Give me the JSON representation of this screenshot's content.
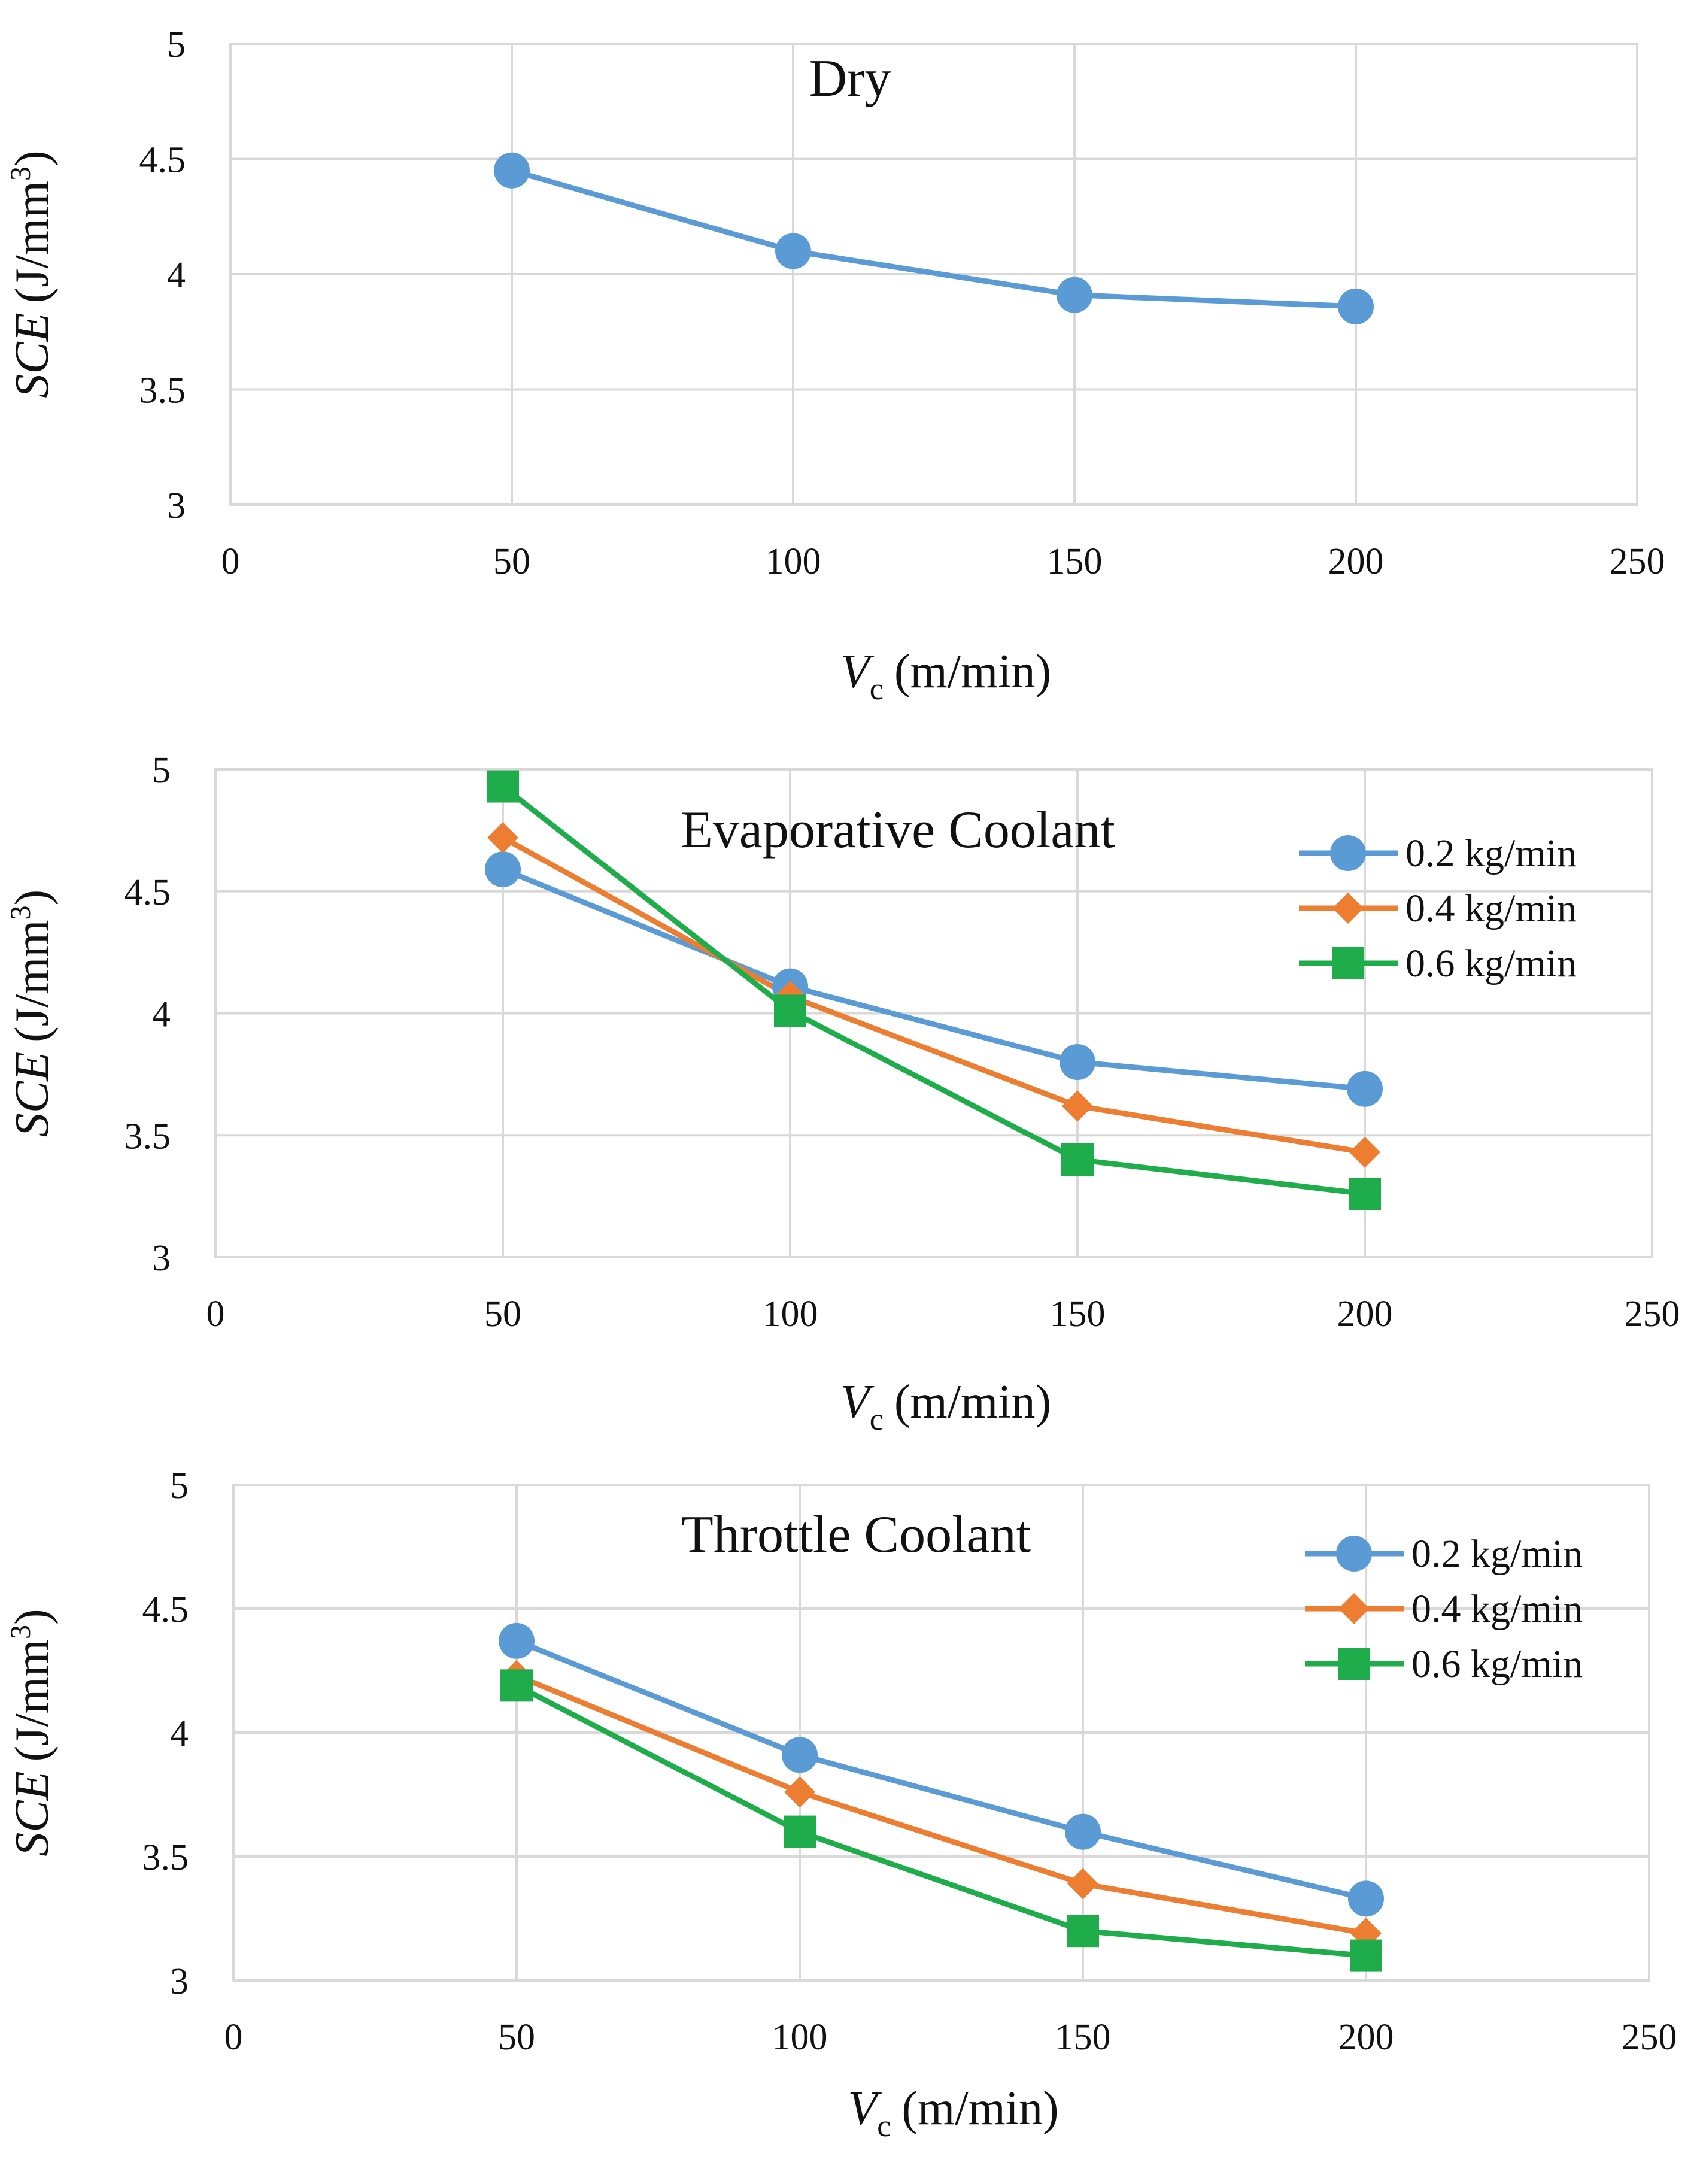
{
  "chart_data": [
    {
      "type": "line",
      "title": "Dry",
      "xlabel": {
        "main": "V",
        "sub": "c",
        "unit": "(m/min)"
      },
      "ylabel": {
        "main": "SCE",
        "unit": "(J/mm",
        "sup": "3",
        "close": ")"
      },
      "xlim": [
        0,
        250
      ],
      "ylim": [
        3,
        5
      ],
      "xticks": [
        "0",
        "50",
        "100",
        "150",
        "200",
        "250"
      ],
      "yticks": [
        "3",
        "3.5",
        "4",
        "4.5",
        "5"
      ],
      "grid": true,
      "legend": null,
      "series": [
        {
          "name": "Dry",
          "marker": "circle",
          "color": "#5b9bd5",
          "x": [
            50,
            100,
            150,
            200
          ],
          "y": [
            4.45,
            4.1,
            3.91,
            3.86
          ]
        }
      ]
    },
    {
      "type": "line",
      "title": "Evaporative Coolant",
      "xlabel": {
        "main": "V",
        "sub": "c",
        "unit": "(m/min)"
      },
      "ylabel": {
        "main": "SCE",
        "unit": "(J/mm",
        "sup": "3",
        "close": ")"
      },
      "xlim": [
        0,
        250
      ],
      "ylim": [
        3,
        5
      ],
      "xticks": [
        "0",
        "50",
        "100",
        "150",
        "200",
        "250"
      ],
      "yticks": [
        "3",
        "3.5",
        "4",
        "4.5",
        "5"
      ],
      "grid": true,
      "legend": "top-right",
      "series": [
        {
          "name": "0.2 kg/min",
          "marker": "circle",
          "color": "#5b9bd5",
          "x": [
            50,
            100,
            150,
            200
          ],
          "y": [
            4.59,
            4.11,
            3.8,
            3.69
          ]
        },
        {
          "name": "0.4 kg/min",
          "marker": "diamond",
          "color": "#ed7d31",
          "x": [
            50,
            100,
            150,
            200
          ],
          "y": [
            4.72,
            4.07,
            3.62,
            3.43
          ]
        },
        {
          "name": "0.6 kg/min",
          "marker": "square",
          "color": "#1fad4b",
          "x": [
            50,
            100,
            150,
            200
          ],
          "y": [
            4.93,
            4.01,
            3.4,
            3.26
          ]
        }
      ]
    },
    {
      "type": "line",
      "title": "Throttle Coolant",
      "xlabel": {
        "main": "V",
        "sub": "c",
        "unit": "(m/min)"
      },
      "ylabel": {
        "main": "SCE",
        "unit": "(J/mm",
        "sup": "3",
        "close": ")"
      },
      "xlim": [
        0,
        250
      ],
      "ylim": [
        3,
        5
      ],
      "xticks": [
        "0",
        "50",
        "100",
        "150",
        "200",
        "250"
      ],
      "yticks": [
        "3",
        "3.5",
        "4",
        "4.5",
        "5"
      ],
      "grid": true,
      "legend": "top-right",
      "series": [
        {
          "name": "0.2 kg/min",
          "marker": "circle",
          "color": "#5b9bd5",
          "x": [
            50,
            100,
            150,
            200
          ],
          "y": [
            4.37,
            3.91,
            3.6,
            3.33
          ]
        },
        {
          "name": "0.4 kg/min",
          "marker": "diamond",
          "color": "#ed7d31",
          "x": [
            50,
            100,
            150,
            200
          ],
          "y": [
            4.23,
            3.76,
            3.39,
            3.19
          ]
        },
        {
          "name": "0.6 kg/min",
          "marker": "square",
          "color": "#1fad4b",
          "x": [
            50,
            100,
            150,
            200
          ],
          "y": [
            4.19,
            3.6,
            3.2,
            3.1
          ]
        }
      ]
    }
  ]
}
